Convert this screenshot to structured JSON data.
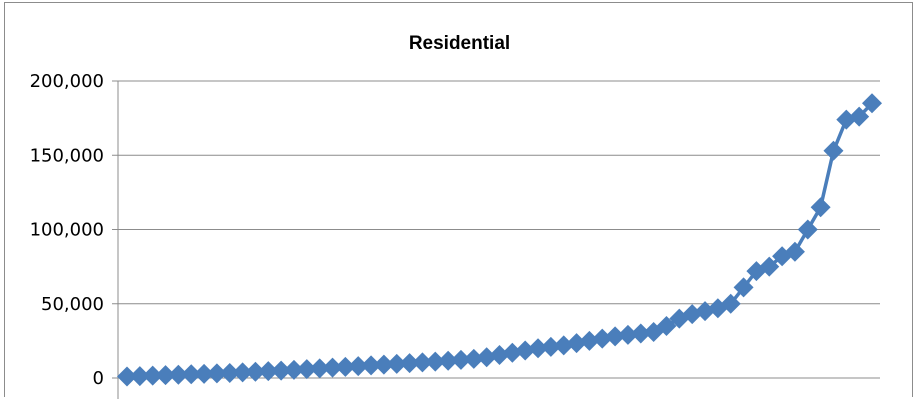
{
  "chart_data": {
    "type": "line",
    "title": "Residential",
    "xlabel": "",
    "ylabel": "",
    "ylim": [
      0,
      200000
    ],
    "yticks": [
      0,
      50000,
      100000,
      150000,
      200000
    ],
    "ytick_labels": [
      "0",
      "50,000",
      "100,000",
      "150,000",
      "200,000"
    ],
    "grid": true,
    "legend": "none",
    "series": [
      {
        "color": "#4a7ebb",
        "marker": "diamond",
        "values": [
          1000,
          1300,
          1600,
          1900,
          2200,
          2500,
          2800,
          3100,
          3400,
          3800,
          4200,
          4600,
          5000,
          5500,
          6000,
          6500,
          7000,
          7500,
          8000,
          8500,
          9000,
          9500,
          10000,
          10500,
          11000,
          11600,
          12200,
          12900,
          14000,
          15500,
          17000,
          18500,
          20000,
          21000,
          22000,
          23500,
          25000,
          26500,
          28000,
          29000,
          30000,
          31000,
          35000,
          40000,
          43000,
          45000,
          47000,
          50000,
          61000,
          72000,
          75000,
          82000,
          85000,
          100000,
          115000,
          153000,
          174000,
          176000,
          185000
        ]
      }
    ]
  }
}
